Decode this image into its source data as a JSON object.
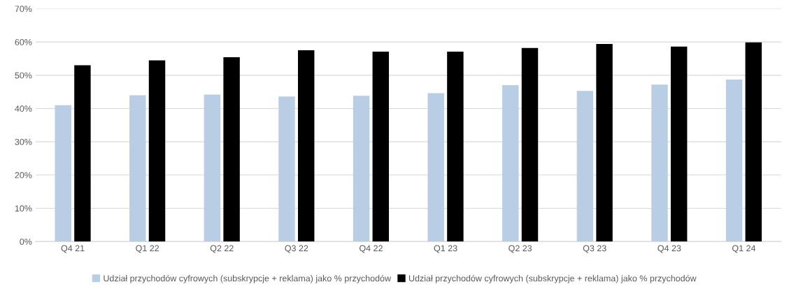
{
  "chart_data": {
    "type": "bar",
    "categories": [
      "Q4 21",
      "Q1 22",
      "Q2 22",
      "Q3 22",
      "Q4 22",
      "Q1 23",
      "Q2 23",
      "Q3 23",
      "Q4 23",
      "Q1 24"
    ],
    "series": [
      {
        "name": "Udział przychodów cyfrowych (subskrypcje + reklama) jako % przychodów",
        "color": "#b9cde5",
        "values": [
          41.0,
          44.0,
          44.2,
          43.6,
          43.8,
          44.6,
          47.0,
          45.3,
          47.2,
          48.7
        ]
      },
      {
        "name": "Udział przychodów cyfrowych (subskrypcje + reklama) jako % przychodów",
        "color": "#000000",
        "values": [
          53.0,
          54.5,
          55.4,
          57.5,
          57.1,
          57.1,
          58.2,
          59.4,
          58.6,
          59.9
        ]
      }
    ],
    "ylim": [
      0,
      70
    ],
    "yticks": [
      {
        "value": 0,
        "label": "0%"
      },
      {
        "value": 10,
        "label": "10%"
      },
      {
        "value": 20,
        "label": "20%"
      },
      {
        "value": 30,
        "label": "30%"
      },
      {
        "value": 40,
        "label": "40%"
      },
      {
        "value": 50,
        "label": "50%"
      },
      {
        "value": 60,
        "label": "60%"
      },
      {
        "value": 70,
        "label": "70%"
      }
    ],
    "grid": "y",
    "legend": "bottom"
  }
}
